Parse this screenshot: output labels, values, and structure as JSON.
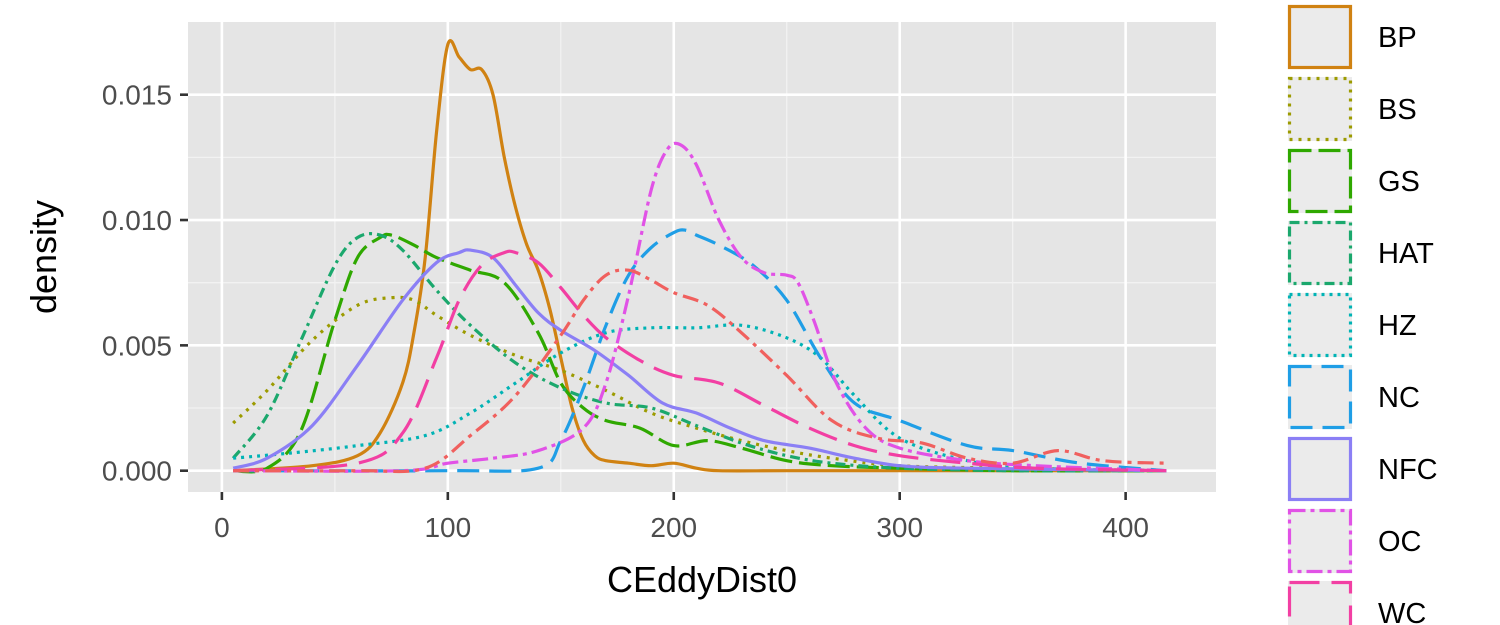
{
  "chart_data": {
    "type": "line",
    "title": "",
    "xlabel": "CEddyDist0",
    "ylabel": "density",
    "xlim": [
      -15,
      440
    ],
    "ylim": [
      -0.00085,
      0.0179
    ],
    "xticks": [
      0,
      100,
      200,
      300,
      400
    ],
    "xtick_labels": [
      "0",
      "100",
      "200",
      "300",
      "400"
    ],
    "yticks": [
      0.0,
      0.005,
      0.01,
      0.015
    ],
    "ytick_labels": [
      "0.000",
      "0.005",
      "0.010",
      "0.015"
    ],
    "grid": true,
    "panel_background": "#e5e5e5",
    "legend_position": "right",
    "series": [
      {
        "name": "BP",
        "color": "#d08212",
        "dash": "solid",
        "x": [
          5,
          40,
          60,
          70,
          80,
          85,
          90,
          95,
          100,
          105,
          110,
          115,
          120,
          125,
          130,
          135,
          140,
          145,
          150,
          155,
          160,
          165,
          170,
          180,
          190,
          200,
          210,
          220,
          250,
          300,
          350,
          418
        ],
        "y": [
          0.0,
          0.0002,
          0.0006,
          0.0015,
          0.0035,
          0.0055,
          0.0085,
          0.0135,
          0.017,
          0.0165,
          0.016,
          0.016,
          0.015,
          0.0125,
          0.0105,
          0.009,
          0.008,
          0.0065,
          0.0045,
          0.0025,
          0.0012,
          0.0006,
          0.0004,
          0.0003,
          0.0002,
          0.0003,
          0.0001,
          0.0,
          0.0,
          0.0,
          0.0,
          0.0
        ]
      },
      {
        "name": "BS",
        "color": "#9c9b00",
        "dash": "3,6",
        "x": [
          5,
          20,
          40,
          60,
          75,
          85,
          95,
          110,
          130,
          150,
          170,
          190,
          210,
          230,
          250,
          270,
          300,
          350,
          418
        ],
        "y": [
          0.0019,
          0.0032,
          0.0052,
          0.0066,
          0.0069,
          0.0068,
          0.0062,
          0.0054,
          0.0046,
          0.004,
          0.0032,
          0.0023,
          0.0017,
          0.0012,
          0.0008,
          0.0005,
          0.0002,
          0.0001,
          0.0
        ]
      },
      {
        "name": "GS",
        "color": "#2fa800",
        "dash": "22,7",
        "x": [
          5,
          20,
          35,
          50,
          60,
          70,
          75,
          85,
          95,
          110,
          125,
          140,
          150,
          160,
          170,
          185,
          200,
          215,
          230,
          250,
          270,
          300,
          350,
          418
        ],
        "y": [
          0.0,
          0.0001,
          0.0016,
          0.006,
          0.0085,
          0.0093,
          0.0094,
          0.009,
          0.0085,
          0.008,
          0.0075,
          0.0055,
          0.0035,
          0.0025,
          0.002,
          0.0017,
          0.001,
          0.0012,
          0.0009,
          0.0004,
          0.0002,
          0.0001,
          0.0,
          0.0
        ]
      },
      {
        "name": "HAT",
        "color": "#1ba86d",
        "dash": "10,5,3,5",
        "x": [
          5,
          20,
          35,
          50,
          60,
          70,
          80,
          95,
          110,
          130,
          150,
          170,
          190,
          210,
          230,
          250,
          270,
          300,
          350,
          418
        ],
        "y": [
          0.0005,
          0.0022,
          0.0052,
          0.0082,
          0.0093,
          0.0094,
          0.0088,
          0.0072,
          0.0058,
          0.0043,
          0.0033,
          0.0027,
          0.0025,
          0.0018,
          0.0011,
          0.0006,
          0.0003,
          0.0001,
          0.0,
          0.0
        ]
      },
      {
        "name": "HZ",
        "color": "#00b3b5",
        "dash": "3,5",
        "x": [
          5,
          30,
          60,
          90,
          110,
          130,
          150,
          170,
          190,
          210,
          230,
          250,
          265,
          280,
          300,
          330,
          360,
          418
        ],
        "y": [
          0.0005,
          0.0007,
          0.001,
          0.0014,
          0.0023,
          0.0035,
          0.0047,
          0.0055,
          0.0057,
          0.0057,
          0.0058,
          0.0053,
          0.0045,
          0.003,
          0.0013,
          0.0004,
          0.0001,
          0.0
        ]
      },
      {
        "name": "NC",
        "color": "#1f9ee6",
        "dash": "22,10",
        "x": [
          5,
          100,
          140,
          150,
          160,
          170,
          180,
          190,
          200,
          205,
          210,
          220,
          235,
          250,
          265,
          280,
          300,
          330,
          350,
          380,
          418
        ],
        "y": [
          0.0,
          0.0,
          0.0001,
          0.0012,
          0.0033,
          0.0058,
          0.0078,
          0.0089,
          0.0095,
          0.0096,
          0.0094,
          0.009,
          0.0082,
          0.0068,
          0.0045,
          0.0027,
          0.002,
          0.001,
          0.0008,
          0.0003,
          0.0
        ]
      },
      {
        "name": "NFC",
        "color": "#8b7ff5",
        "dash": "solid",
        "x": [
          5,
          20,
          40,
          60,
          80,
          95,
          105,
          110,
          120,
          130,
          140,
          150,
          165,
          180,
          195,
          210,
          225,
          240,
          260,
          280,
          300,
          330,
          418
        ],
        "y": [
          0.0001,
          0.0005,
          0.0018,
          0.0042,
          0.0068,
          0.0083,
          0.0087,
          0.0088,
          0.0085,
          0.0074,
          0.0063,
          0.0056,
          0.0048,
          0.0038,
          0.0027,
          0.0023,
          0.0017,
          0.0012,
          0.0009,
          0.0005,
          0.0002,
          0.0001,
          0.0
        ]
      },
      {
        "name": "OC",
        "color": "#e152e6",
        "dash": "16,5,4,5",
        "x": [
          5,
          80,
          100,
          120,
          140,
          160,
          170,
          180,
          190,
          197,
          203,
          210,
          220,
          230,
          240,
          250,
          255,
          262,
          272,
          285,
          300,
          330,
          360,
          418
        ],
        "y": [
          0.0,
          0.0,
          0.0003,
          0.0005,
          0.0008,
          0.0017,
          0.0035,
          0.007,
          0.0112,
          0.0128,
          0.013,
          0.0122,
          0.01,
          0.0085,
          0.0079,
          0.0078,
          0.0075,
          0.006,
          0.0035,
          0.0017,
          0.0009,
          0.0004,
          0.0002,
          0.0
        ]
      },
      {
        "name": "WC",
        "color": "#f23fa3",
        "dash": "30,12",
        "x": [
          5,
          60,
          80,
          95,
          105,
          115,
          125,
          130,
          140,
          150,
          160,
          170,
          185,
          200,
          220,
          240,
          260,
          280,
          300,
          330,
          360,
          418
        ],
        "y": [
          0.0,
          0.0003,
          0.0015,
          0.0045,
          0.0068,
          0.0082,
          0.0087,
          0.0087,
          0.0083,
          0.0073,
          0.0062,
          0.0053,
          0.0044,
          0.0038,
          0.0035,
          0.0026,
          0.0017,
          0.001,
          0.0006,
          0.0003,
          0.0001,
          0.0
        ]
      },
      {
        "name": "",
        "color": "#f0605e",
        "dash": "16,6,4,6",
        "x": [
          5,
          60,
          90,
          110,
          130,
          150,
          160,
          170,
          180,
          190,
          200,
          215,
          230,
          250,
          270,
          290,
          310,
          330,
          350,
          370,
          390,
          418
        ],
        "y": [
          0.0,
          0.0,
          0.0001,
          0.0014,
          0.003,
          0.0054,
          0.0068,
          0.0078,
          0.008,
          0.0076,
          0.0071,
          0.0066,
          0.0055,
          0.0038,
          0.002,
          0.0013,
          0.0011,
          0.0005,
          0.0003,
          0.0008,
          0.0004,
          0.0003
        ]
      }
    ]
  },
  "legend_labels": [
    "BP",
    "BS",
    "GS",
    "HAT",
    "HZ",
    "NC",
    "NFC",
    "OC",
    "WC"
  ]
}
